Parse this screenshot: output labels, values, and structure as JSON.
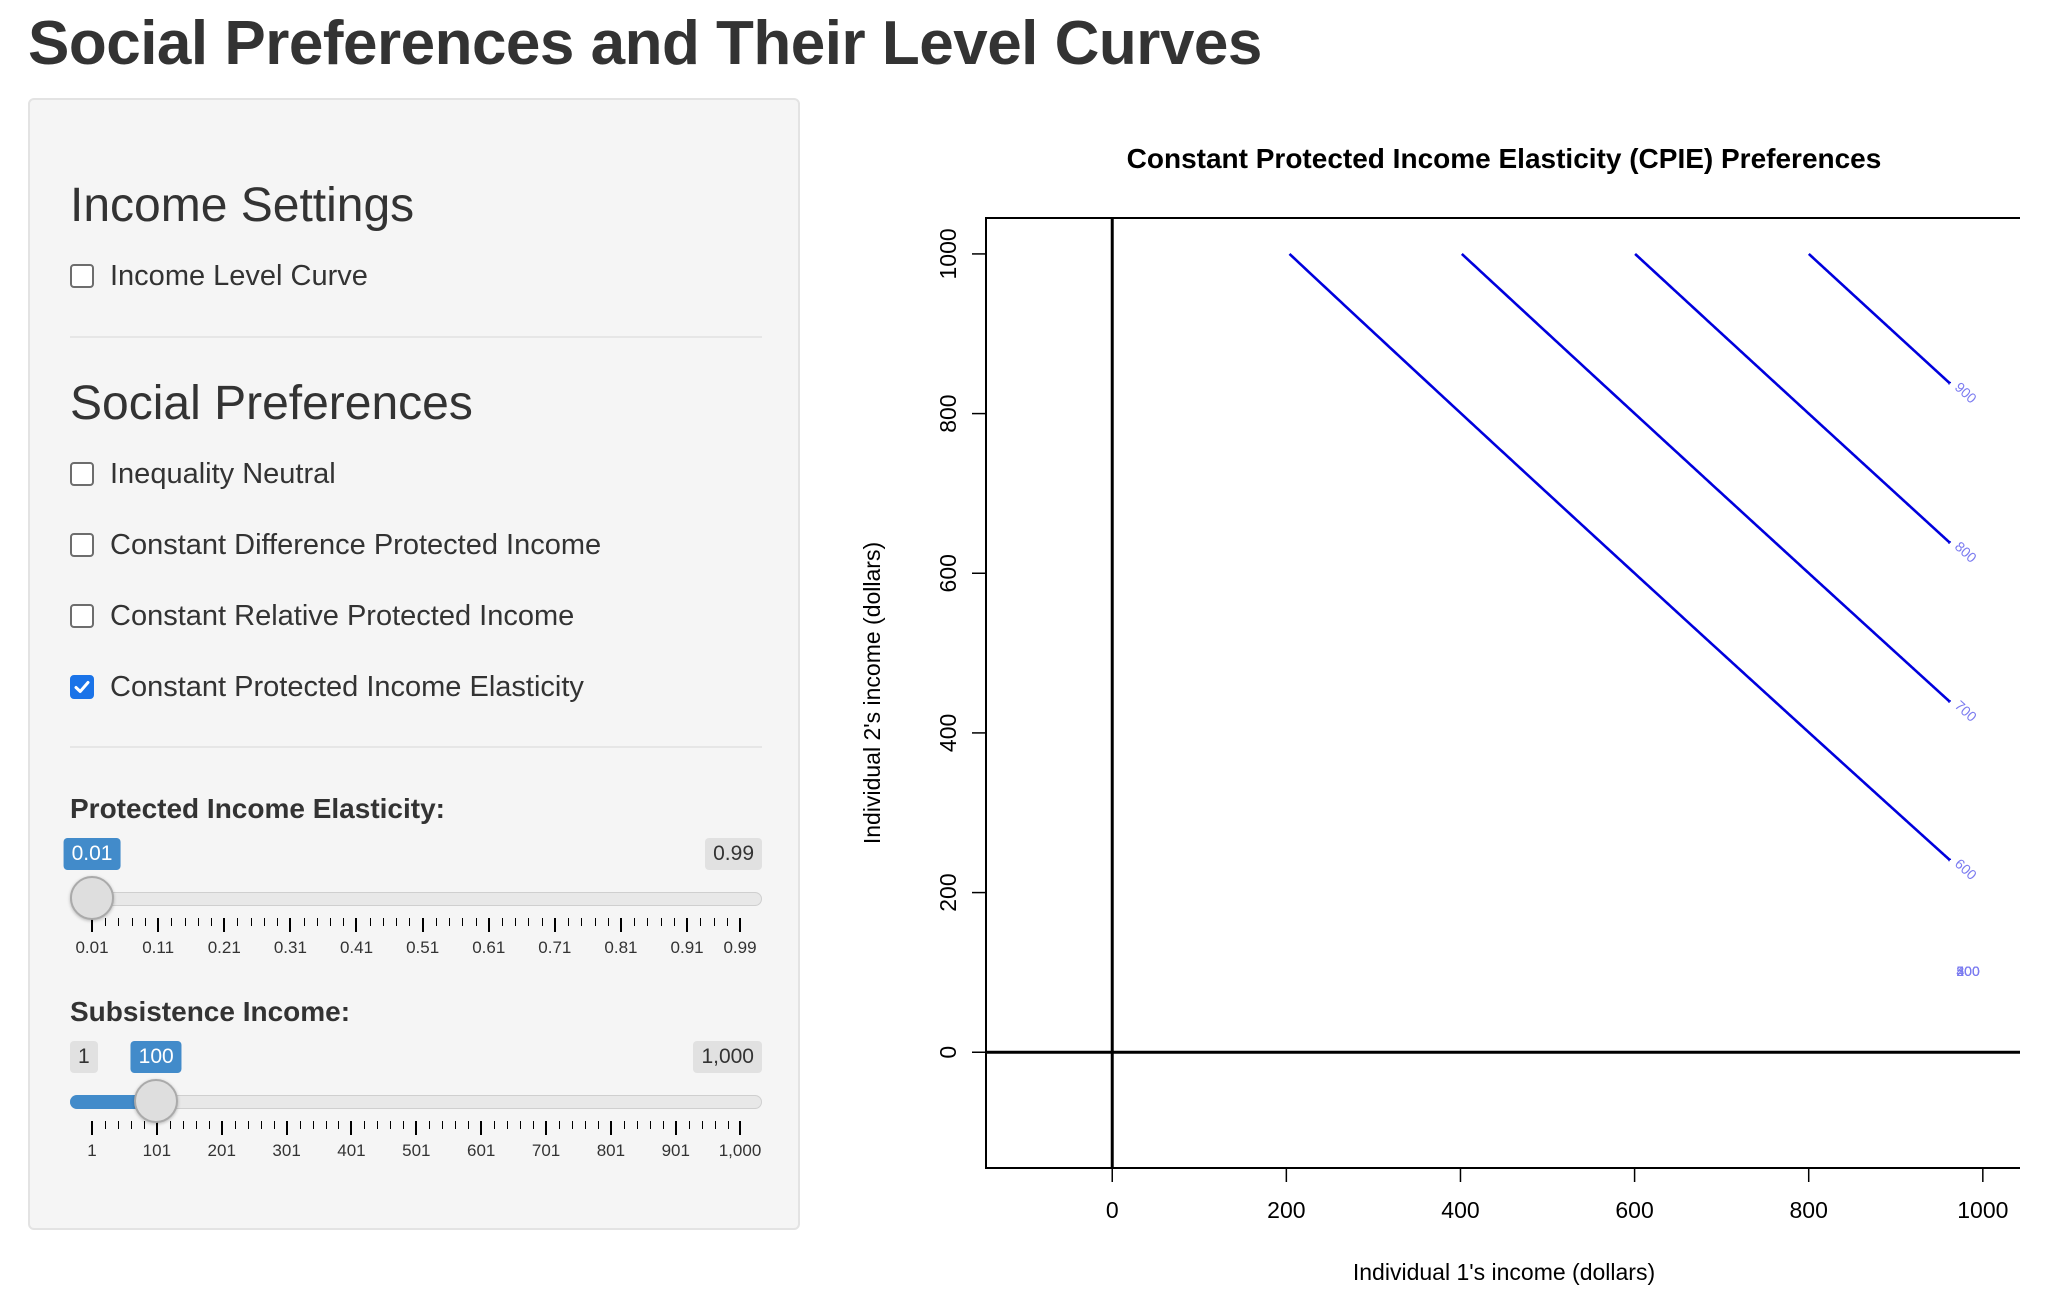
{
  "page": {
    "title": "Social Preferences and Their Level Curves"
  },
  "sidebar": {
    "income_settings": {
      "heading": "Income Settings",
      "checkboxes": [
        {
          "label": "Income Level Curve",
          "checked": false
        }
      ]
    },
    "social_preferences": {
      "heading": "Social Preferences",
      "checkboxes": [
        {
          "label": "Inequality Neutral",
          "checked": false
        },
        {
          "label": "Constant Difference Protected Income",
          "checked": false
        },
        {
          "label": "Constant Relative Protected Income",
          "checked": false
        },
        {
          "label": "Constant Protected Income Elasticity",
          "checked": true
        }
      ]
    },
    "elasticity_slider": {
      "label": "Protected Income Elasticity:",
      "min_label": "0.01",
      "max_label": "0.99",
      "value_label": "0.01",
      "min": 0.01,
      "max": 0.99,
      "value": 0.01,
      "tick_labels": [
        "0.01",
        "0.11",
        "0.21",
        "0.31",
        "0.41",
        "0.51",
        "0.61",
        "0.71",
        "0.81",
        "0.91",
        "0.99"
      ],
      "tick_values": [
        0.01,
        0.11,
        0.21,
        0.31,
        0.41,
        0.51,
        0.61,
        0.71,
        0.81,
        0.91,
        0.99
      ],
      "accent_color": "#428bca"
    },
    "subsistence_slider": {
      "label": "Subsistence Income:",
      "min_label": "1",
      "max_label": "1,000",
      "value_label": "100",
      "min": 1,
      "max": 1000,
      "value": 100,
      "tick_labels": [
        "1",
        "101",
        "201",
        "301",
        "401",
        "501",
        "601",
        "701",
        "801",
        "901",
        "1,000"
      ],
      "tick_values": [
        1,
        101,
        201,
        301,
        401,
        501,
        601,
        701,
        801,
        901,
        1000
      ],
      "accent_color": "#428bca"
    }
  },
  "chart_data": {
    "type": "line",
    "title": "Constant Protected Income Elasticity (CPIE) Preferences",
    "xlabel": "Individual 1's income (dollars)",
    "ylabel": "Individual 2's income (dollars)",
    "xlim": [
      -145,
      1045
    ],
    "ylim": [
      -145,
      1045
    ],
    "xticks": [
      0,
      200,
      400,
      600,
      800,
      1000
    ],
    "yticks": [
      0,
      200,
      400,
      600,
      800,
      1000
    ],
    "grid": false,
    "reference_lines": {
      "x": 0,
      "y": 0
    },
    "line_color": "#0000dd",
    "label_color": "#7b7bf0",
    "subsistence_income": 100,
    "elasticity": 0.01,
    "series": [
      {
        "name": "200",
        "level": 200
      },
      {
        "name": "300",
        "level": 300
      },
      {
        "name": "400",
        "level": 400
      },
      {
        "name": "500",
        "level": 500
      },
      {
        "name": "600",
        "level": 600
      },
      {
        "name": "700",
        "level": 700
      },
      {
        "name": "800",
        "level": 800
      },
      {
        "name": "900",
        "level": 900
      }
    ]
  }
}
